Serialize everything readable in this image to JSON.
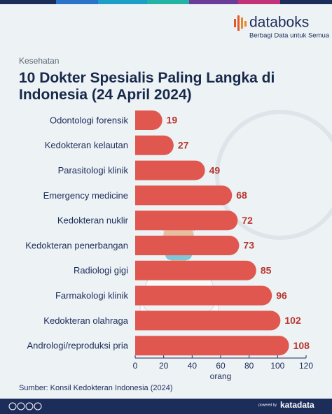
{
  "header": {
    "brand": "databoks",
    "tagline": "Berbagi Data untuk Semua",
    "section": "Kesehatan"
  },
  "chart_data": {
    "type": "hbar",
    "title": "10 Dokter Spesialis Paling Langka di Indonesia (24 April 2024)",
    "categories": [
      "Odontologi forensik",
      "Kedokteran kelautan",
      "Parasitologi klinik",
      "Emergency medicine",
      "Kedokteran nuklir",
      "Kedokteran penerbangan",
      "Radiologi gigi",
      "Farmakologi klinik",
      "Kedokteran olahraga",
      "Andrologi/reproduksi pria"
    ],
    "values": [
      19,
      27,
      49,
      68,
      72,
      73,
      85,
      96,
      102,
      108
    ],
    "color": "#e0574f",
    "label_color": "#b8372f",
    "xlim": [
      0,
      120
    ],
    "xticks": [
      0,
      20,
      40,
      60,
      80,
      100,
      120
    ],
    "x_label": "orang",
    "source": "Sumber: Konsil Kedokteran Indonesia (2024)"
  },
  "footer": {
    "powered_by": "powered by",
    "brand": "katadata"
  }
}
